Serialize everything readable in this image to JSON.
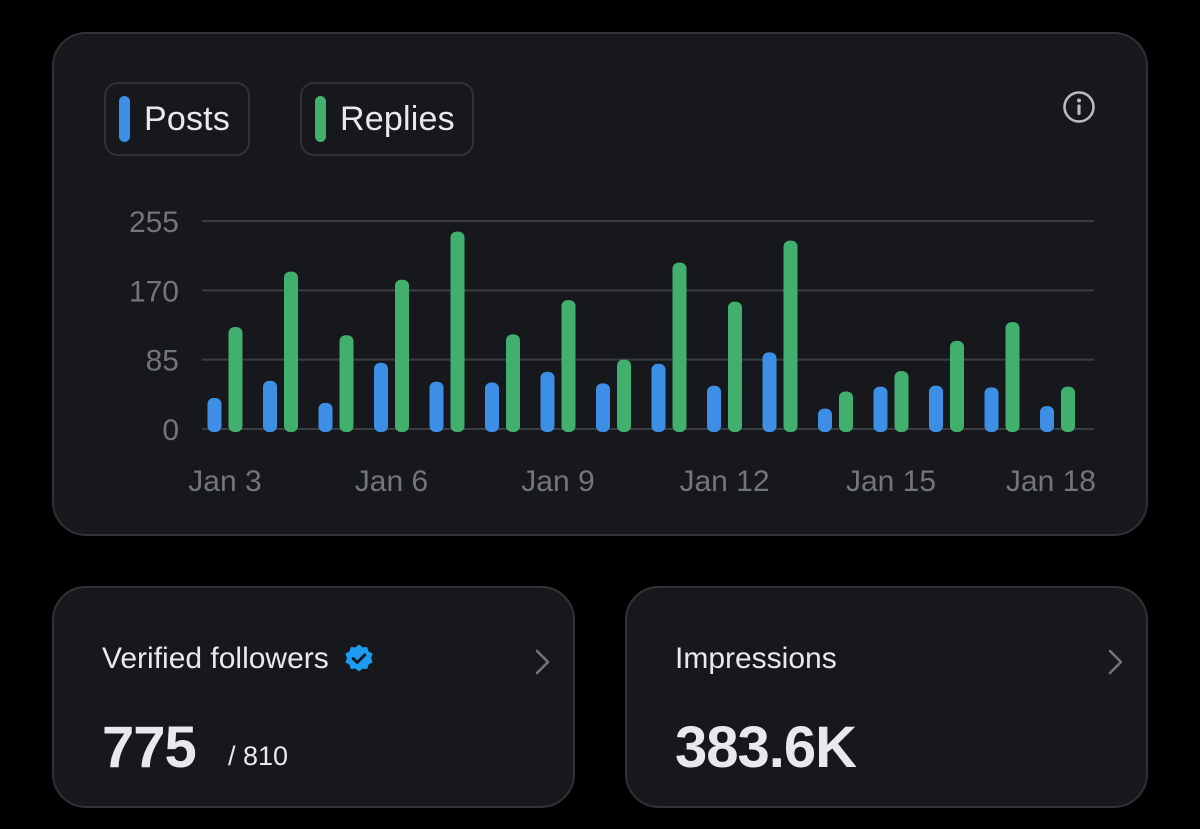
{
  "colors": {
    "posts": "#3d8fe6",
    "replies": "#41b06e",
    "grid": "#3a3d41",
    "tick_text": "#71767b",
    "verified": "#1d9bf0"
  },
  "legend": {
    "posts_label": "Posts",
    "replies_label": "Replies"
  },
  "icons": {
    "info": "info-icon",
    "verified": "verified-badge-icon",
    "chevron": "chevron-right-icon"
  },
  "chart_data": {
    "type": "bar",
    "categories": [
      "Jan 3",
      "Jan 4",
      "Jan 5",
      "Jan 6",
      "Jan 7",
      "Jan 8",
      "Jan 9",
      "Jan 10",
      "Jan 11",
      "Jan 12",
      "Jan 13",
      "Jan 14",
      "Jan 15",
      "Jan 16",
      "Jan 17",
      "Jan 18"
    ],
    "tick_labels": [
      "Jan 3",
      "Jan 6",
      "Jan 9",
      "Jan 12",
      "Jan 15",
      "Jan 18"
    ],
    "series": [
      {
        "name": "Posts",
        "values": [
          38,
          59,
          32,
          81,
          58,
          57,
          70,
          56,
          80,
          53,
          94,
          25,
          52,
          53,
          51,
          28
        ]
      },
      {
        "name": "Replies",
        "values": [
          125,
          193,
          115,
          183,
          242,
          116,
          158,
          85,
          204,
          156,
          231,
          46,
          71,
          108,
          131,
          52
        ]
      }
    ],
    "yticks": [
      0,
      85,
      170,
      255
    ],
    "ylim": [
      0,
      255
    ],
    "grid": true,
    "legend": "top-left"
  },
  "stats": {
    "followers": {
      "title": "Verified followers",
      "value": "775",
      "sub": "/ 810"
    },
    "impressions": {
      "title": "Impressions",
      "value": "383.6K"
    }
  }
}
